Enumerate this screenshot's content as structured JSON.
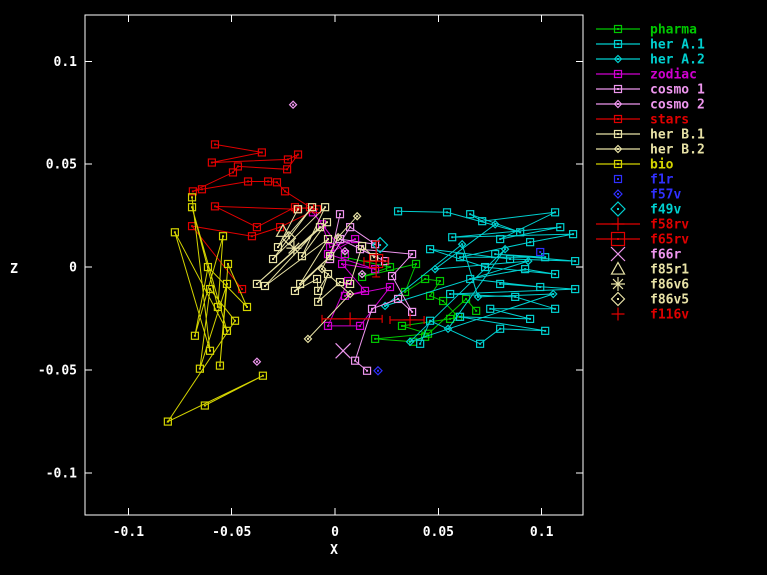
{
  "chart_data": {
    "type": "scatter",
    "title": "",
    "xlabel": "X",
    "ylabel": "Z",
    "xlim": [
      -0.121,
      0.12
    ],
    "ylim": [
      -0.1205,
      0.1225
    ],
    "xticks": [
      -0.1,
      -0.05,
      0,
      0.05,
      0.1
    ],
    "xtick_labels": [
      "-0.1",
      "-0.05",
      "0",
      "0.05",
      "0.1"
    ],
    "yticks": [
      -0.1,
      -0.05,
      0,
      0.05,
      0.1
    ],
    "ytick_labels": [
      "-0.1",
      "-0.05",
      "0",
      "0.05",
      "0.1"
    ],
    "grid": false,
    "background": "#000000",
    "axis_color": "#ffffff",
    "legend_position": "outside-right-top",
    "series": [
      {
        "id": "pharma",
        "name": "pharma",
        "color": "#00c800",
        "marker": "square",
        "line": true,
        "points": [
          [
            0.0048,
            0.0048
          ],
          [
            0.0266,
            0.0
          ],
          [
            0.0131,
            -0.0048
          ],
          [
            0.0392,
            0.0015
          ],
          [
            0.0339,
            -0.0121
          ],
          [
            0.0436,
            -0.0058
          ],
          [
            0.0508,
            -0.0068
          ],
          [
            0.046,
            -0.014
          ],
          [
            0.0523,
            -0.0165
          ],
          [
            0.0596,
            -0.0242
          ],
          [
            0.0557,
            -0.0252
          ],
          [
            0.0324,
            -0.0286
          ],
          [
            0.045,
            -0.0324
          ],
          [
            0.0194,
            -0.0349
          ],
          [
            0.0378,
            -0.0363
          ],
          [
            0.0436,
            -0.0339
          ],
          [
            0.0634,
            -0.0155
          ],
          [
            0.0683,
            -0.0213
          ]
        ]
      },
      {
        "id": "her-a1",
        "name": "her A.1",
        "color": "#00d0d0",
        "marker": "square",
        "line": true,
        "points": [
          [
            0.0305,
            0.0271
          ],
          [
            0.0542,
            0.0266
          ],
          [
            0.0896,
            0.0169
          ],
          [
            0.0654,
            0.0257
          ],
          [
            0.0712,
            0.0223
          ],
          [
            0.1065,
            0.0266
          ],
          [
            0.0799,
            0.0136
          ],
          [
            0.109,
            0.0194
          ],
          [
            0.0567,
            0.0145
          ],
          [
            0.1152,
            0.016
          ],
          [
            0.0944,
            0.0121
          ],
          [
            0.0605,
            0.0048
          ],
          [
            0.1017,
            0.0048
          ],
          [
            0.0775,
            0.0063
          ],
          [
            0.1162,
            0.0029
          ],
          [
            0.0847,
            0.0039
          ],
          [
            0.046,
            0.0087
          ],
          [
            0.0726,
            0.0
          ],
          [
            0.1065,
            -0.0034
          ],
          [
            0.092,
            -0.001
          ],
          [
            0.0654,
            -0.0058
          ],
          [
            0.0993,
            -0.0097
          ],
          [
            0.0799,
            -0.0082
          ],
          [
            0.1162,
            -0.0107
          ],
          [
            0.0557,
            -0.0131
          ],
          [
            0.0872,
            -0.0145
          ],
          [
            0.1065,
            -0.0203
          ],
          [
            0.0751,
            -0.0203
          ],
          [
            0.0944,
            -0.0252
          ],
          [
            0.0605,
            -0.0242
          ],
          [
            0.1017,
            -0.031
          ],
          [
            0.0799,
            -0.03
          ],
          [
            0.0702,
            -0.0373
          ],
          [
            0.046,
            -0.0261
          ],
          [
            0.0412,
            -0.0373
          ]
        ]
      },
      {
        "id": "her-a2",
        "name": "her A.2",
        "color": "#00d0d0",
        "marker": "diamond",
        "line": true,
        "points": [
          [
            0.0775,
            0.0208
          ],
          [
            0.0484,
            -0.001
          ],
          [
            0.0935,
            0.0029
          ],
          [
            0.0242,
            -0.0189
          ],
          [
            0.0615,
            0.0111
          ],
          [
            0.0692,
            -0.0145
          ],
          [
            0.1056,
            -0.0131
          ],
          [
            0.0363,
            -0.0363
          ],
          [
            0.0823,
            0.0087
          ],
          [
            0.0547,
            -0.03
          ]
        ]
      },
      {
        "id": "zodiac",
        "name": "zodiac",
        "color": "#d000d0",
        "marker": "square",
        "line": true,
        "points": [
          [
            -0.0107,
            0.0266
          ],
          [
            0.0048,
            0.0063
          ],
          [
            -0.0063,
            0.0208
          ],
          [
            -0.0024,
            0.0097
          ],
          [
            0.0097,
            0.0136
          ],
          [
            -0.0034,
            0.0063
          ],
          [
            0.0194,
            -0.001
          ],
          [
            0.0034,
            0.0015
          ],
          [
            0.0145,
            -0.0116
          ],
          [
            0.0048,
            -0.014
          ],
          [
            0.0266,
            -0.0097
          ],
          [
            0.0121,
            -0.0286
          ],
          [
            -0.0034,
            -0.0286
          ],
          [
            0.0063,
            -0.0068
          ]
        ]
      },
      {
        "id": "cosmo-1",
        "name": "cosmo 1",
        "color": "#ee96ee",
        "marker": "square",
        "line": true,
        "points": [
          [
            0.0024,
            0.0257
          ],
          [
            -0.0024,
            0.0039
          ],
          [
            0.0073,
            0.0194
          ],
          [
            0.0194,
            0.0111
          ],
          [
            0.0024,
            0.0136
          ],
          [
            0.0242,
            0.0029
          ],
          [
            0.0121,
            0.0087
          ],
          [
            0.0373,
            0.0063
          ],
          [
            0.0276,
            -0.0044
          ],
          [
            0.0373,
            -0.0218
          ],
          [
            0.0305,
            -0.0155
          ],
          [
            0.0179,
            -0.0203
          ],
          [
            0.0097,
            -0.0455
          ],
          [
            0.0155,
            -0.0504
          ]
        ]
      },
      {
        "id": "cosmo-2",
        "name": "cosmo 2",
        "color": "#ee96ee",
        "marker": "diamond",
        "line": false,
        "points": [
          [
            -0.0203,
            0.0789
          ],
          [
            0.0048,
            0.0077
          ],
          [
            0.0131,
            -0.0034
          ],
          [
            -0.0378,
            -0.046
          ]
        ]
      },
      {
        "id": "stars",
        "name": "stars",
        "color": "#e00000",
        "marker": "square",
        "line": true,
        "points": [
          [
            -0.0581,
            0.0596
          ],
          [
            -0.0354,
            0.0557
          ],
          [
            -0.0596,
            0.0508
          ],
          [
            -0.0228,
            0.0523
          ],
          [
            -0.0179,
            0.0547
          ],
          [
            -0.0232,
            0.0475
          ],
          [
            -0.047,
            0.0489
          ],
          [
            -0.0494,
            0.046
          ],
          [
            -0.0688,
            0.0368
          ],
          [
            -0.0644,
            0.0378
          ],
          [
            -0.0421,
            0.0416
          ],
          [
            -0.0324,
            0.0416
          ],
          [
            -0.0281,
            0.0412
          ],
          [
            -0.0242,
            0.0368
          ],
          [
            -0.0121,
            0.0291
          ],
          [
            -0.0184,
            0.0281
          ],
          [
            -0.0581,
            0.0295
          ],
          [
            -0.0378,
            0.0194
          ],
          [
            -0.0194,
            0.0291
          ],
          [
            -0.0087,
            0.0281
          ],
          [
            -0.0266,
            0.0194
          ],
          [
            -0.0402,
            0.015
          ],
          [
            -0.0692,
            0.0199
          ],
          [
            -0.045,
            -0.0107
          ]
        ]
      },
      {
        "id": "her-b1",
        "name": "her B.1",
        "color": "#e8e2a6",
        "marker": "square",
        "line": true,
        "points": [
          [
            -0.0179,
            0.0281
          ],
          [
            -0.0276,
            0.0097
          ],
          [
            -0.0111,
            0.0291
          ],
          [
            -0.03,
            0.0039
          ],
          [
            -0.0048,
            0.0291
          ],
          [
            -0.016,
            0.0053
          ],
          [
            -0.0039,
            0.0218
          ],
          [
            -0.0378,
            -0.0082
          ],
          [
            -0.0073,
            0.0194
          ],
          [
            -0.0339,
            -0.0092
          ],
          [
            -0.0034,
            0.0136
          ],
          [
            -0.0169,
            -0.0082
          ],
          [
            -0.0024,
            0.0053
          ],
          [
            -0.0194,
            -0.0116
          ],
          [
            -0.0087,
            -0.0058
          ],
          [
            -0.0082,
            -0.0116
          ],
          [
            -0.0034,
            -0.0034
          ],
          [
            -0.0082,
            -0.0169
          ],
          [
            0.0024,
            -0.0073
          ],
          [
            0.0073,
            -0.0082
          ],
          [
            0.0131,
            0.0102
          ],
          [
            0.0189,
            0.0048
          ]
        ]
      },
      {
        "id": "her-b2",
        "name": "her B.2",
        "color": "#e8e2a6",
        "marker": "diamond",
        "line": true,
        "points": [
          [
            0.0107,
            0.0247
          ],
          [
            0.0015,
            0.0145
          ],
          [
            -0.0063,
            -0.001
          ],
          [
            0.0073,
            -0.0131
          ],
          [
            -0.0131,
            -0.0349
          ]
        ]
      },
      {
        "id": "bio",
        "name": "bio",
        "color": "#d4d400",
        "marker": "square",
        "line": true,
        "points": [
          [
            -0.0692,
            0.0339
          ],
          [
            -0.0605,
            -0.0407
          ],
          [
            -0.0775,
            0.0169
          ],
          [
            -0.0523,
            -0.031
          ],
          [
            -0.0692,
            0.0291
          ],
          [
            -0.0567,
            -0.0194
          ],
          [
            -0.0542,
            0.015
          ],
          [
            -0.0678,
            -0.0334
          ],
          [
            -0.0615,
            0.0
          ],
          [
            -0.0426,
            -0.0194
          ],
          [
            -0.0518,
            0.0015
          ],
          [
            -0.0557,
            -0.0479
          ],
          [
            -0.0523,
            -0.0082
          ],
          [
            -0.0654,
            -0.0494
          ],
          [
            -0.0605,
            -0.0107
          ],
          [
            -0.0484,
            -0.0261
          ],
          [
            -0.0809,
            -0.0751
          ],
          [
            -0.0349,
            -0.0528
          ],
          [
            -0.063,
            -0.0673
          ]
        ]
      }
    ],
    "folio_points": [
      {
        "id": "f1r",
        "name": "f1r",
        "color": "#3030ff",
        "marker": "square",
        "size": 7,
        "x": 0.0993,
        "z": 0.0073
      },
      {
        "id": "f57v",
        "name": "f57v",
        "color": "#3030ff",
        "marker": "diamond",
        "size": 8,
        "x": 0.0208,
        "z": -0.0504
      },
      {
        "id": "f49v",
        "name": "f49v",
        "color": "#00d0d0",
        "marker": "diamond",
        "size": 15,
        "x": 0.0218,
        "z": 0.0107
      },
      {
        "id": "f58rv",
        "name": "f58rv",
        "color": "#e00000",
        "marker": "plus",
        "size": 13,
        "x": 0.0073,
        "z": -0.0252,
        "xerr": [
          -0.0063,
          0.0228
        ],
        "legend_line": true
      },
      {
        "id": "f65rv",
        "name": "f65rv",
        "color": "#e00000",
        "marker": "square",
        "size": 13,
        "x": 0.0199,
        "z": 0.0029,
        "xerr": [
          0.014,
          0.0257
        ],
        "yerr": [
          -0.0048,
          0.0126
        ],
        "legend_line": true
      },
      {
        "id": "f66r",
        "name": "f66r",
        "color": "#ee96ee",
        "marker": "cross",
        "size": 15,
        "x": 0.0039,
        "z": -0.0407
      },
      {
        "id": "f85r1",
        "name": "f85r1",
        "color": "#e8e2a6",
        "marker": "triangle",
        "size": 13,
        "x": -0.0252,
        "z": 0.0174
      },
      {
        "id": "f86v6",
        "name": "f86v6",
        "color": "#e8e2a6",
        "marker": "asterisk",
        "size": 15,
        "x": -0.0199,
        "z": 0.0092
      },
      {
        "id": "f86v5",
        "name": "f86v5",
        "color": "#e8e2a6",
        "marker": "diamond",
        "size": 13,
        "x": -0.0223,
        "z": 0.014
      },
      {
        "id": "f116v",
        "name": "f116v",
        "color": "#e00000",
        "marker": "plus",
        "size": 13,
        "x": 0.0363,
        "z": -0.0257,
        "xerr": [
          0.0266,
          0.0431
        ]
      }
    ]
  }
}
